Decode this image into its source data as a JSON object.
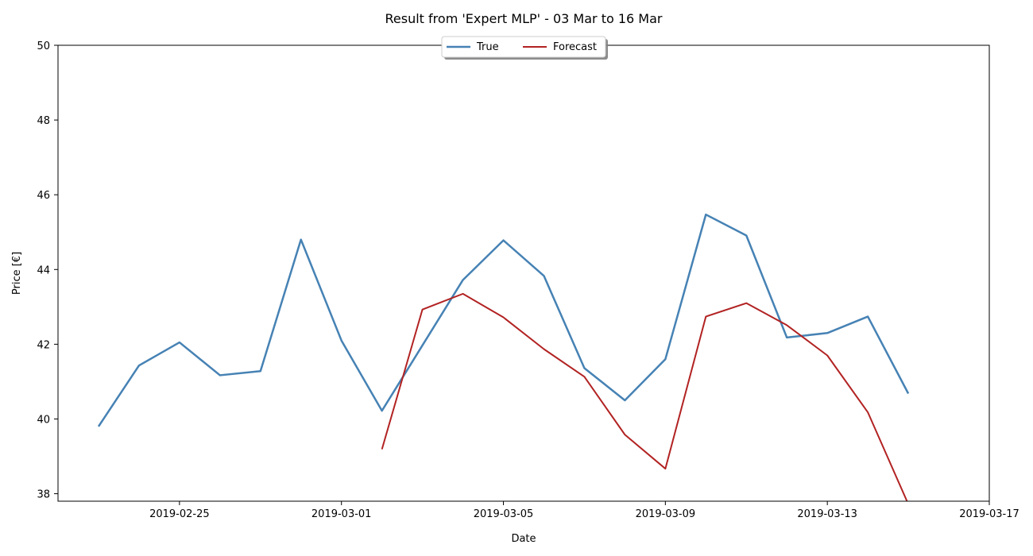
{
  "chart_data": {
    "type": "line",
    "title": "Result from 'Expert MLP' - 03 Mar to 16 Mar",
    "xlabel": "Date",
    "ylabel": "Price [€]",
    "xlim": [
      "2019-02-22",
      "2019-03-17"
    ],
    "ylim": [
      37.8,
      50
    ],
    "x_ticks": [
      "2019-02-25",
      "2019-03-01",
      "2019-03-05",
      "2019-03-09",
      "2019-03-13",
      "2019-03-17"
    ],
    "y_ticks": [
      38,
      40,
      42,
      44,
      46,
      48,
      50
    ],
    "grid": false,
    "legend": {
      "placement": "top-center",
      "ncol": 2
    },
    "series": [
      {
        "name": "True",
        "color": "#4682b4",
        "points": [
          {
            "x": "2019-02-23",
            "y": 39.8
          },
          {
            "x": "2019-02-24",
            "y": 41.43
          },
          {
            "x": "2019-02-25",
            "y": 42.05
          },
          {
            "x": "2019-02-26",
            "y": 41.17
          },
          {
            "x": "2019-02-27",
            "y": 41.28
          },
          {
            "x": "2019-02-28",
            "y": 44.8
          },
          {
            "x": "2019-03-01",
            "y": 42.1
          },
          {
            "x": "2019-03-02",
            "y": 40.22
          },
          {
            "x": "2019-03-03",
            "y": 41.97
          },
          {
            "x": "2019-03-04",
            "y": 43.72
          },
          {
            "x": "2019-03-05",
            "y": 44.78
          },
          {
            "x": "2019-03-06",
            "y": 43.83
          },
          {
            "x": "2019-03-07",
            "y": 41.36
          },
          {
            "x": "2019-03-08",
            "y": 40.5
          },
          {
            "x": "2019-03-09",
            "y": 41.6
          },
          {
            "x": "2019-03-10",
            "y": 45.47
          },
          {
            "x": "2019-03-11",
            "y": 44.91
          },
          {
            "x": "2019-03-12",
            "y": 42.18
          },
          {
            "x": "2019-03-13",
            "y": 42.3
          },
          {
            "x": "2019-03-14",
            "y": 42.74
          },
          {
            "x": "2019-03-15",
            "y": 40.68
          }
        ]
      },
      {
        "name": "Forecast",
        "color": "#b22222",
        "points": [
          {
            "x": "2019-03-02",
            "y": 39.19
          },
          {
            "x": "2019-03-03",
            "y": 42.93
          },
          {
            "x": "2019-03-04",
            "y": 43.35
          },
          {
            "x": "2019-03-05",
            "y": 42.72
          },
          {
            "x": "2019-03-06",
            "y": 41.87
          },
          {
            "x": "2019-03-07",
            "y": 41.13
          },
          {
            "x": "2019-03-08",
            "y": 39.58
          },
          {
            "x": "2019-03-09",
            "y": 38.67
          },
          {
            "x": "2019-03-10",
            "y": 42.74
          },
          {
            "x": "2019-03-11",
            "y": 43.1
          },
          {
            "x": "2019-03-12",
            "y": 42.51
          },
          {
            "x": "2019-03-13",
            "y": 41.7
          },
          {
            "x": "2019-03-14",
            "y": 40.18
          },
          {
            "x": "2019-03-15",
            "y": 37.72
          }
        ]
      }
    ]
  }
}
